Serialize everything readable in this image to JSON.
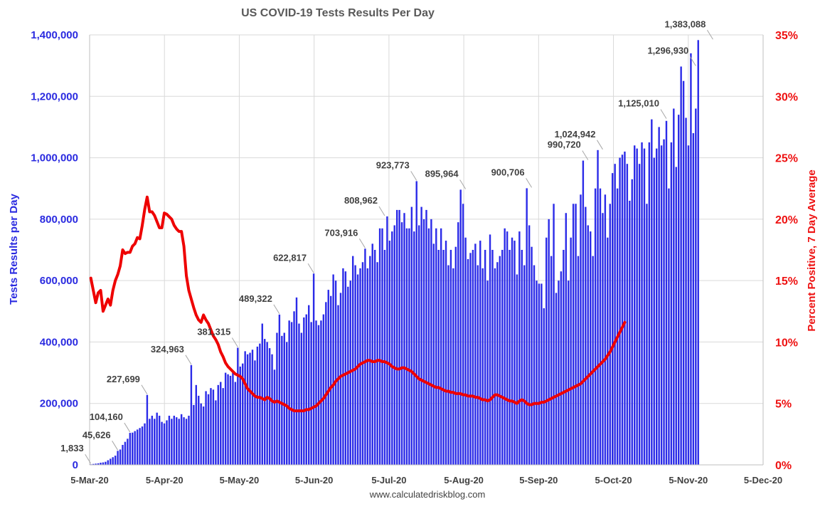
{
  "chart_data": {
    "type": "bar",
    "title": "US COVID-19 Tests Results Per Day",
    "ylabel": "Tests Results per Day",
    "y2label": "Percent Positive, 7 Day Average",
    "source": "www.calculatedriskblog.com",
    "ylim": [
      0,
      1400000
    ],
    "y2lim": [
      0,
      35
    ],
    "yticks": [
      "0",
      "200,000",
      "400,000",
      "600,000",
      "800,000",
      "1,000,000",
      "1,200,000",
      "1,400,000"
    ],
    "y2ticks": [
      "0%",
      "5%",
      "10%",
      "15%",
      "20%",
      "25%",
      "30%",
      "35%"
    ],
    "xticks": [
      "5-Mar-20",
      "5-Apr-20",
      "5-May-20",
      "5-Jun-20",
      "5-Jul-20",
      "5-Aug-20",
      "5-Sep-20",
      "5-Oct-20",
      "5-Nov-20",
      "5-Dec-20"
    ],
    "grid": true,
    "series": [
      {
        "name": "",
        "kind": "bar",
        "color": "#2b2be8",
        "x_start": "2020-03-05",
        "values": [
          1833,
          3000,
          4000,
          5000,
          7000,
          8000,
          10000,
          15000,
          20000,
          25000,
          30000,
          45626,
          50000,
          65000,
          75000,
          85000,
          104160,
          105000,
          110000,
          115000,
          120000,
          125000,
          135000,
          227699,
          150000,
          160000,
          150000,
          170000,
          160000,
          140000,
          135000,
          145000,
          160000,
          150000,
          160000,
          155000,
          150000,
          165000,
          155000,
          150000,
          160000,
          324963,
          195000,
          260000,
          225000,
          200000,
          190000,
          240000,
          230000,
          250000,
          245000,
          210000,
          260000,
          270000,
          250000,
          300000,
          295000,
          290000,
          300000,
          270000,
          381315,
          320000,
          330000,
          370000,
          360000,
          365000,
          375000,
          340000,
          385000,
          395000,
          460000,
          410000,
          400000,
          380000,
          360000,
          310000,
          430000,
          489322,
          420000,
          430000,
          400000,
          470000,
          465000,
          500000,
          545000,
          460000,
          430000,
          480000,
          490000,
          520000,
          465000,
          622817,
          470000,
          455000,
          470000,
          490000,
          530000,
          570000,
          550000,
          620000,
          600000,
          520000,
          560000,
          640000,
          630000,
          580000,
          600000,
          680000,
          650000,
          620000,
          640000,
          660000,
          703916,
          640000,
          680000,
          720000,
          700000,
          660000,
          770000,
          770000,
          700000,
          808962,
          730000,
          760000,
          780000,
          830000,
          830000,
          790000,
          820000,
          770000,
          770000,
          840000,
          760000,
          923773,
          780000,
          840000,
          800000,
          830000,
          770000,
          800000,
          720000,
          770000,
          700000,
          770000,
          700000,
          730000,
          650000,
          700000,
          640000,
          710000,
          790000,
          895964,
          850000,
          740000,
          670000,
          690000,
          700000,
          720000,
          650000,
          730000,
          640000,
          700000,
          600000,
          750000,
          700000,
          640000,
          660000,
          680000,
          700000,
          770000,
          760000,
          700000,
          740000,
          730000,
          620000,
          760000,
          700000,
          650000,
          900706,
          780000,
          710000,
          650000,
          600000,
          590000,
          590000,
          510000,
          740000,
          800000,
          680000,
          850000,
          560000,
          600000,
          630000,
          700000,
          820000,
          600000,
          740000,
          850000,
          850000,
          680000,
          880000,
          990720,
          840000,
          780000,
          760000,
          680000,
          900000,
          1024942,
          900000,
          820000,
          880000,
          740000,
          850000,
          950000,
          980000,
          900000,
          1000000,
          1010000,
          1020000,
          980000,
          860000,
          930000,
          1040000,
          1030000,
          980000,
          1050000,
          1030000,
          850000,
          1050000,
          1125010,
          1000000,
          1030000,
          1100000,
          1040000,
          1060000,
          1120000,
          900000,
          1050000,
          1160000,
          970000,
          1140000,
          1296930,
          1250000,
          1130000,
          1040000,
          1340000,
          1080000,
          1160000,
          1383088
        ]
      },
      {
        "name": "",
        "kind": "line",
        "axis": "right",
        "color": "#ee0000",
        "x_start": "2020-03-05",
        "values": [
          15.2,
          14.2,
          13.2,
          14.0,
          14.2,
          12.5,
          13.0,
          13.5,
          13.0,
          14.2,
          15.0,
          15.5,
          16.2,
          17.5,
          17.2,
          17.3,
          17.3,
          17.8,
          18.0,
          18.5,
          18.4,
          19.5,
          20.8,
          21.8,
          20.6,
          20.6,
          20.3,
          19.8,
          19.3,
          19.3,
          20.5,
          20.4,
          20.2,
          20.0,
          19.5,
          19.2,
          19.0,
          19.0,
          17.8,
          15.4,
          14.2,
          13.5,
          12.8,
          12.2,
          11.8,
          11.6,
          12.2,
          11.8,
          11.5,
          11.0,
          10.5,
          10.2,
          9.8,
          9.2,
          8.8,
          8.3,
          8.0,
          7.8,
          7.6,
          7.4,
          7.3,
          7.2,
          7.0,
          6.6,
          6.2,
          6.0,
          5.8,
          5.6,
          5.5,
          5.5,
          5.4,
          5.3,
          5.5,
          5.4,
          5.2,
          5.1,
          5.2,
          5.1,
          5.0,
          4.9,
          4.8,
          4.6,
          4.5,
          4.4,
          4.4,
          4.4,
          4.4,
          4.4,
          4.5,
          4.5,
          4.6,
          4.7,
          4.8,
          5.0,
          5.2,
          5.4,
          5.7,
          6.0,
          6.3,
          6.5,
          6.8,
          7.0,
          7.2,
          7.3,
          7.4,
          7.5,
          7.6,
          7.7,
          7.8,
          8.0,
          8.2,
          8.3,
          8.4,
          8.5,
          8.5,
          8.4,
          8.4,
          8.5,
          8.5,
          8.4,
          8.4,
          8.3,
          8.2,
          8.0,
          7.9,
          7.8,
          7.8,
          7.9,
          7.9,
          7.8,
          7.7,
          7.6,
          7.4,
          7.2,
          7.0,
          6.9,
          6.8,
          6.7,
          6.6,
          6.5,
          6.4,
          6.3,
          6.3,
          6.2,
          6.1,
          6.0,
          6.0,
          5.9,
          5.9,
          5.8,
          5.8,
          5.8,
          5.7,
          5.7,
          5.6,
          5.6,
          5.6,
          5.5,
          5.5,
          5.4,
          5.3,
          5.3,
          5.2,
          5.3,
          5.5,
          5.7,
          5.7,
          5.6,
          5.5,
          5.4,
          5.3,
          5.2,
          5.2,
          5.1,
          5.0,
          5.2,
          5.3,
          5.2,
          5.0,
          4.9,
          4.9,
          5.0,
          5.0,
          5.0,
          5.1,
          5.1,
          5.2,
          5.3,
          5.4,
          5.5,
          5.6,
          5.7,
          5.8,
          5.9,
          6.0,
          6.1,
          6.2,
          6.3,
          6.4,
          6.5,
          6.6,
          6.8,
          7.0,
          7.2,
          7.4,
          7.6,
          7.8,
          8.0,
          8.2,
          8.4,
          8.6,
          8.9,
          9.2,
          9.6,
          10.0,
          10.4,
          10.8,
          11.2,
          11.6
        ]
      }
    ],
    "annotations": [
      {
        "label": "1,833",
        "x_index": 0,
        "value": 1833
      },
      {
        "label": "45,626",
        "x_index": 11,
        "value": 45626
      },
      {
        "label": "104,160",
        "x_index": 16,
        "value": 104160
      },
      {
        "label": "227,699",
        "x_index": 23,
        "value": 227699
      },
      {
        "label": "324,963",
        "x_index": 41,
        "value": 324963
      },
      {
        "label": "381,315",
        "x_index": 60,
        "value": 381315
      },
      {
        "label": "489,322",
        "x_index": 77,
        "value": 489322
      },
      {
        "label": "622,817",
        "x_index": 91,
        "value": 622817
      },
      {
        "label": "703,916",
        "x_index": 112,
        "value": 703916
      },
      {
        "label": "808,962",
        "x_index": 120,
        "value": 808962
      },
      {
        "label": "923,773",
        "x_index": 133,
        "value": 923773
      },
      {
        "label": "895,964",
        "x_index": 153,
        "value": 895964
      },
      {
        "label": "900,706",
        "x_index": 180,
        "value": 900706
      },
      {
        "label": "990,720",
        "x_index": 203,
        "value": 990720
      },
      {
        "label": "1,024,942",
        "x_index": 209,
        "value": 1024942
      },
      {
        "label": "1,125,010",
        "x_index": 235,
        "value": 1125010
      },
      {
        "label": "1,296,930",
        "x_index": 247,
        "value": 1296930
      },
      {
        "label": "1,383,088",
        "x_index": 254,
        "value": 1383088
      }
    ]
  }
}
